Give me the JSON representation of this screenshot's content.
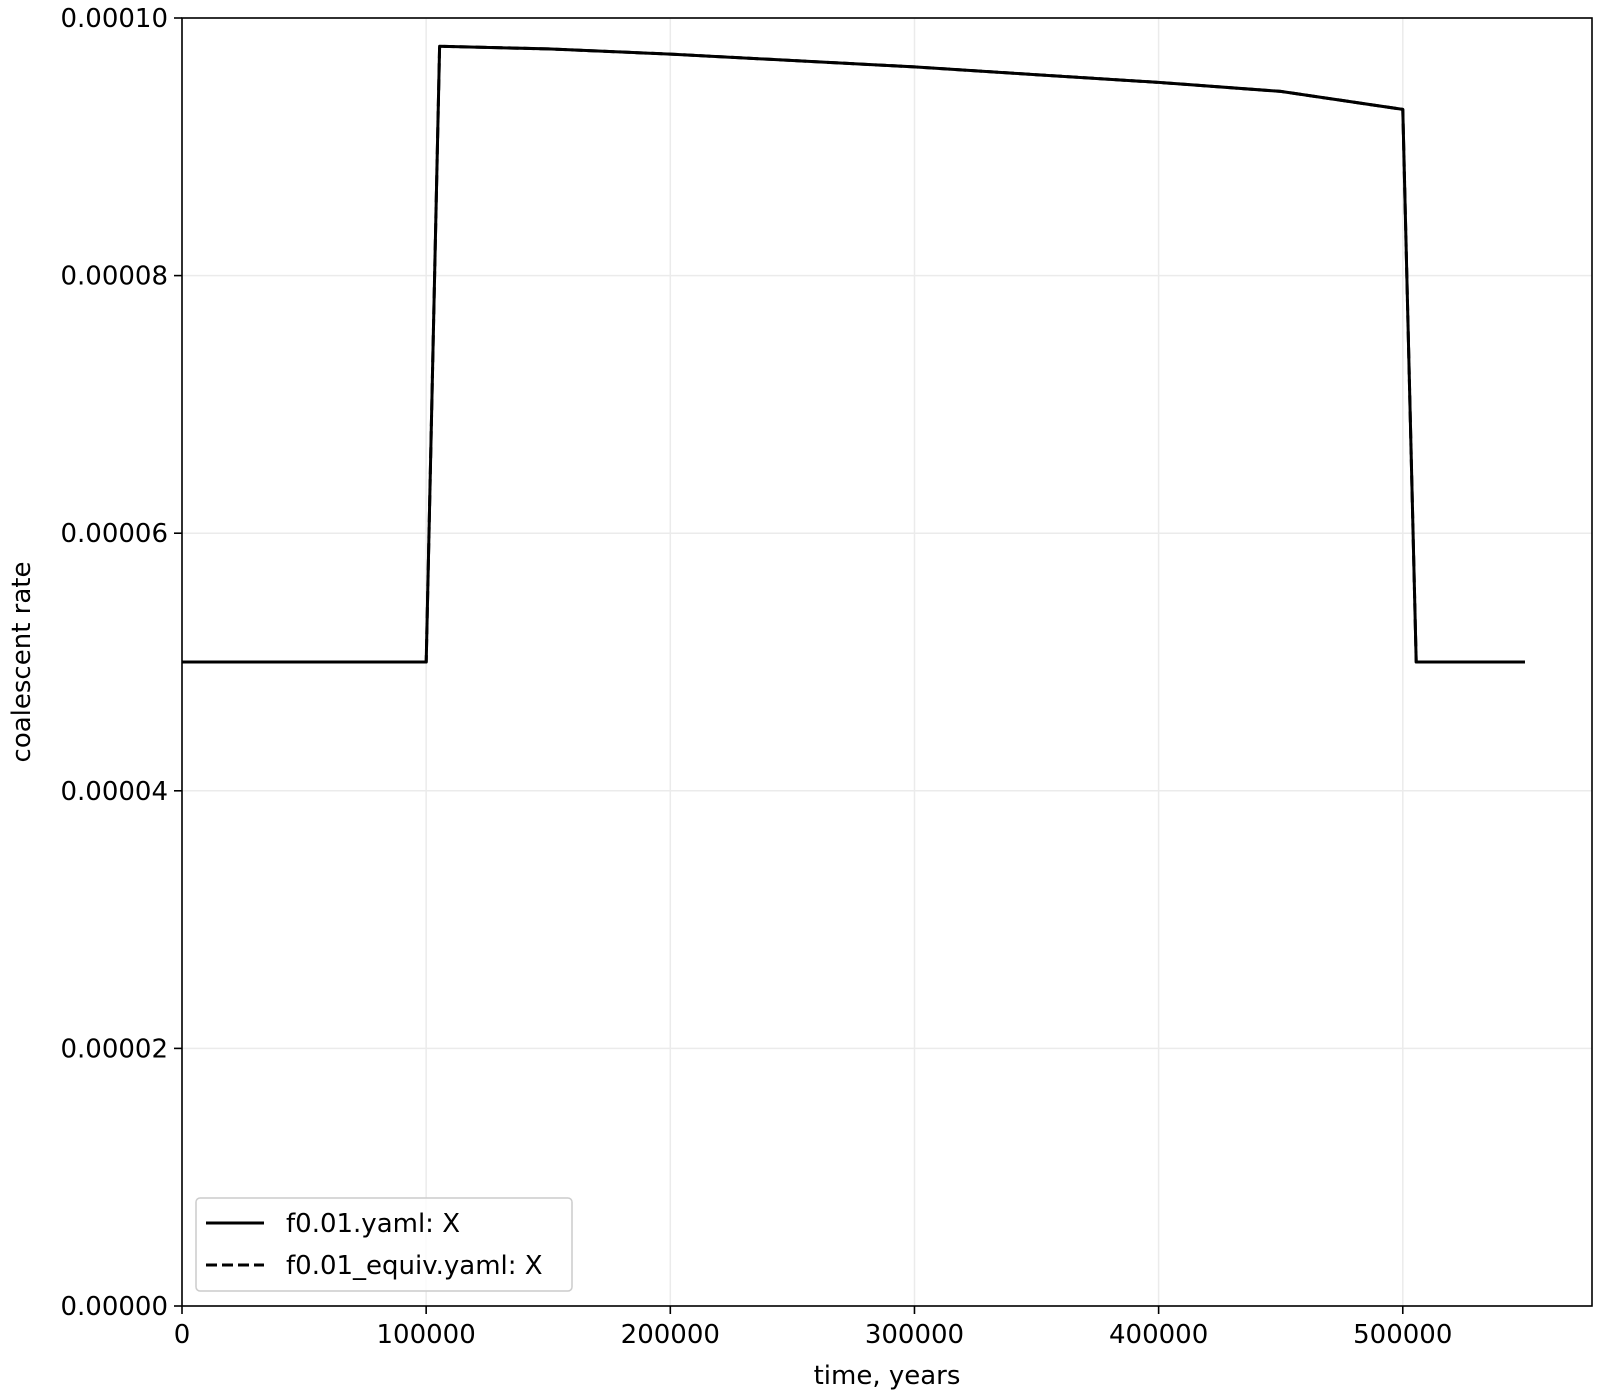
{
  "chart_data": {
    "type": "line",
    "xlabel": "time, years",
    "ylabel": "coalescent rate",
    "xlim": [
      0,
      577500
    ],
    "ylim": [
      0,
      0.0001
    ],
    "x_ticks": [
      0,
      100000,
      200000,
      300000,
      400000,
      500000
    ],
    "x_tick_labels": [
      "0",
      "100000",
      "200000",
      "300000",
      "400000",
      "500000"
    ],
    "y_ticks": [
      0,
      2e-05,
      4e-05,
      6e-05,
      8e-05,
      0.0001
    ],
    "y_tick_labels": [
      "0.00000",
      "0.00002",
      "0.00004",
      "0.00006",
      "0.00008",
      "0.00010"
    ],
    "grid": true,
    "legend_position": "lower-left",
    "series": [
      {
        "name": "f0.01.yaml: X",
        "style": "solid",
        "color": "#000000",
        "x": [
          0,
          100000,
          105500,
          150000,
          200000,
          250000,
          300000,
          350000,
          400000,
          450000,
          500000,
          505500,
          550000
        ],
        "y": [
          5e-05,
          5e-05,
          9.78e-05,
          9.76e-05,
          9.72e-05,
          9.67e-05,
          9.62e-05,
          9.56e-05,
          9.5e-05,
          9.43e-05,
          9.29e-05,
          5e-05,
          5e-05
        ]
      },
      {
        "name": "f0.01_equiv.yaml: X",
        "style": "dashed",
        "color": "#000000",
        "x": [
          0,
          100000,
          105500,
          150000,
          200000,
          250000,
          300000,
          350000,
          400000,
          450000,
          500000,
          505500,
          550000
        ],
        "y": [
          5e-05,
          5e-05,
          9.78e-05,
          9.76e-05,
          9.72e-05,
          9.67e-05,
          9.62e-05,
          9.56e-05,
          9.5e-05,
          9.43e-05,
          9.29e-05,
          5e-05,
          5e-05
        ]
      }
    ]
  }
}
